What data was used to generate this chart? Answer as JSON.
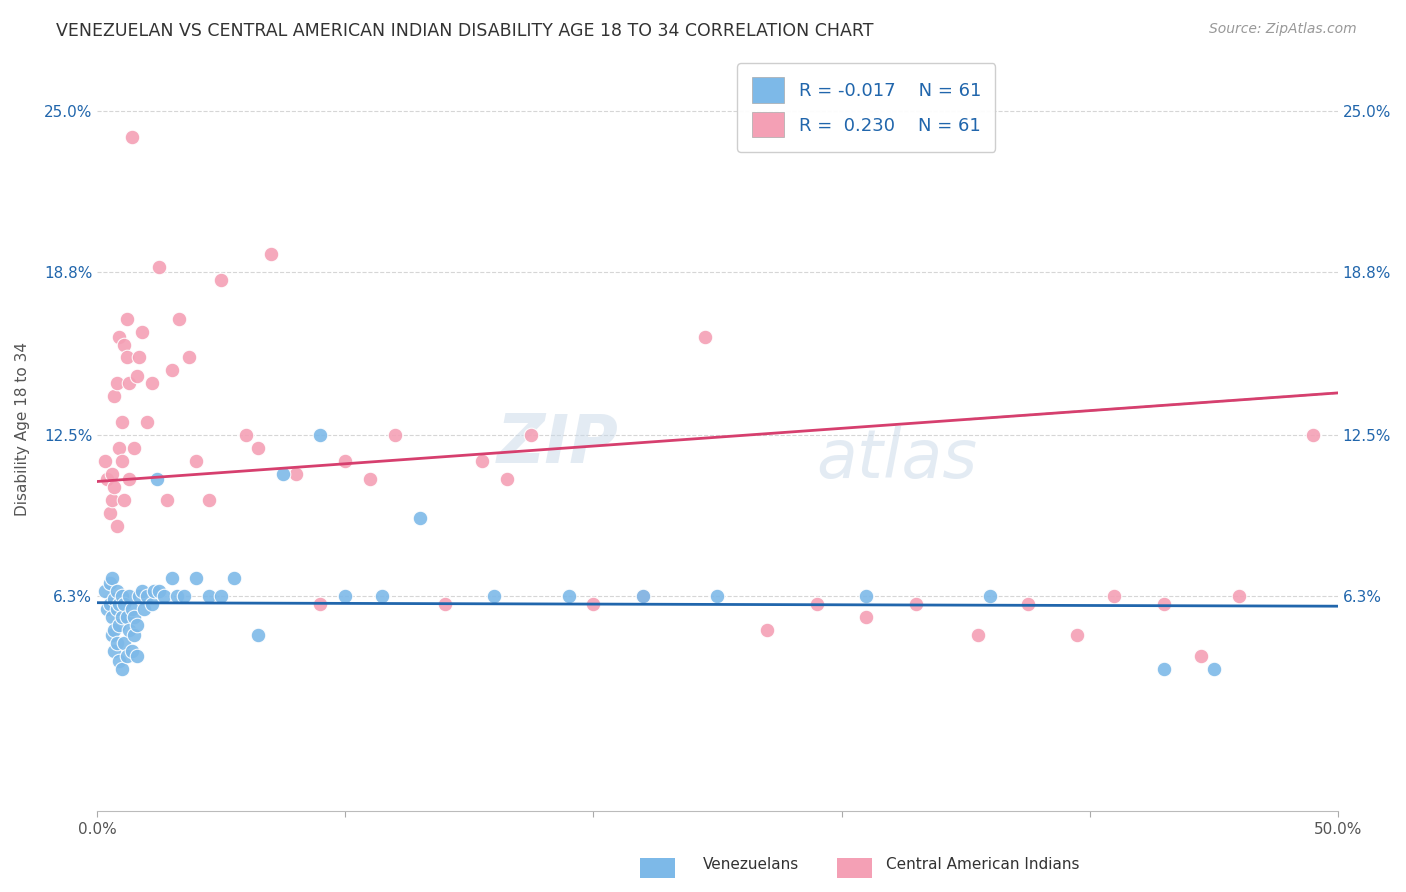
{
  "title": "VENEZUELAN VS CENTRAL AMERICAN INDIAN DISABILITY AGE 18 TO 34 CORRELATION CHART",
  "source": "Source: ZipAtlas.com",
  "ylabel": "Disability Age 18 to 34",
  "xlim": [
    0.0,
    0.5
  ],
  "ylim": [
    -0.02,
    0.275
  ],
  "ytick_positions": [
    0.063,
    0.125,
    0.188,
    0.25
  ],
  "ytick_labels": [
    "6.3%",
    "12.5%",
    "18.8%",
    "25.0%"
  ],
  "color_blue": "#7db9e8",
  "color_pink": "#f4a0b5",
  "line_blue": "#2166ac",
  "line_pink": "#d63f6e",
  "background": "#ffffff",
  "watermark_zip": "ZIP",
  "watermark_atlas": "atlas",
  "venezuelan_x": [
    0.003,
    0.004,
    0.005,
    0.005,
    0.006,
    0.006,
    0.006,
    0.007,
    0.007,
    0.007,
    0.008,
    0.008,
    0.008,
    0.009,
    0.009,
    0.009,
    0.01,
    0.01,
    0.01,
    0.011,
    0.011,
    0.012,
    0.012,
    0.013,
    0.013,
    0.014,
    0.014,
    0.015,
    0.015,
    0.016,
    0.016,
    0.017,
    0.018,
    0.019,
    0.02,
    0.022,
    0.023,
    0.024,
    0.025,
    0.027,
    0.03,
    0.032,
    0.035,
    0.04,
    0.045,
    0.05,
    0.055,
    0.065,
    0.075,
    0.09,
    0.1,
    0.115,
    0.13,
    0.16,
    0.19,
    0.22,
    0.25,
    0.31,
    0.36,
    0.43,
    0.45
  ],
  "venezuelan_y": [
    0.065,
    0.058,
    0.06,
    0.068,
    0.055,
    0.07,
    0.048,
    0.062,
    0.05,
    0.042,
    0.058,
    0.065,
    0.045,
    0.06,
    0.052,
    0.038,
    0.063,
    0.055,
    0.035,
    0.06,
    0.045,
    0.055,
    0.04,
    0.05,
    0.063,
    0.042,
    0.058,
    0.048,
    0.055,
    0.052,
    0.04,
    0.063,
    0.065,
    0.058,
    0.063,
    0.06,
    0.065,
    0.108,
    0.065,
    0.063,
    0.07,
    0.063,
    0.063,
    0.07,
    0.063,
    0.063,
    0.07,
    0.048,
    0.11,
    0.125,
    0.063,
    0.063,
    0.093,
    0.063,
    0.063,
    0.063,
    0.063,
    0.063,
    0.063,
    0.035,
    0.035
  ],
  "central_american_x": [
    0.003,
    0.004,
    0.005,
    0.006,
    0.006,
    0.007,
    0.007,
    0.008,
    0.008,
    0.009,
    0.009,
    0.01,
    0.01,
    0.011,
    0.011,
    0.012,
    0.012,
    0.013,
    0.013,
    0.014,
    0.015,
    0.016,
    0.017,
    0.018,
    0.02,
    0.022,
    0.025,
    0.028,
    0.03,
    0.033,
    0.037,
    0.04,
    0.045,
    0.05,
    0.06,
    0.065,
    0.07,
    0.08,
    0.09,
    0.1,
    0.11,
    0.12,
    0.14,
    0.155,
    0.165,
    0.175,
    0.2,
    0.22,
    0.245,
    0.27,
    0.29,
    0.31,
    0.33,
    0.355,
    0.375,
    0.395,
    0.41,
    0.43,
    0.445,
    0.46,
    0.49
  ],
  "central_american_y": [
    0.115,
    0.108,
    0.095,
    0.11,
    0.1,
    0.105,
    0.14,
    0.145,
    0.09,
    0.12,
    0.163,
    0.13,
    0.115,
    0.16,
    0.1,
    0.155,
    0.17,
    0.145,
    0.108,
    0.24,
    0.12,
    0.148,
    0.155,
    0.165,
    0.13,
    0.145,
    0.19,
    0.1,
    0.15,
    0.17,
    0.155,
    0.115,
    0.1,
    0.185,
    0.125,
    0.12,
    0.195,
    0.11,
    0.06,
    0.115,
    0.108,
    0.125,
    0.06,
    0.115,
    0.108,
    0.125,
    0.06,
    0.063,
    0.163,
    0.05,
    0.06,
    0.055,
    0.06,
    0.048,
    0.06,
    0.048,
    0.063,
    0.06,
    0.04,
    0.063,
    0.125
  ]
}
